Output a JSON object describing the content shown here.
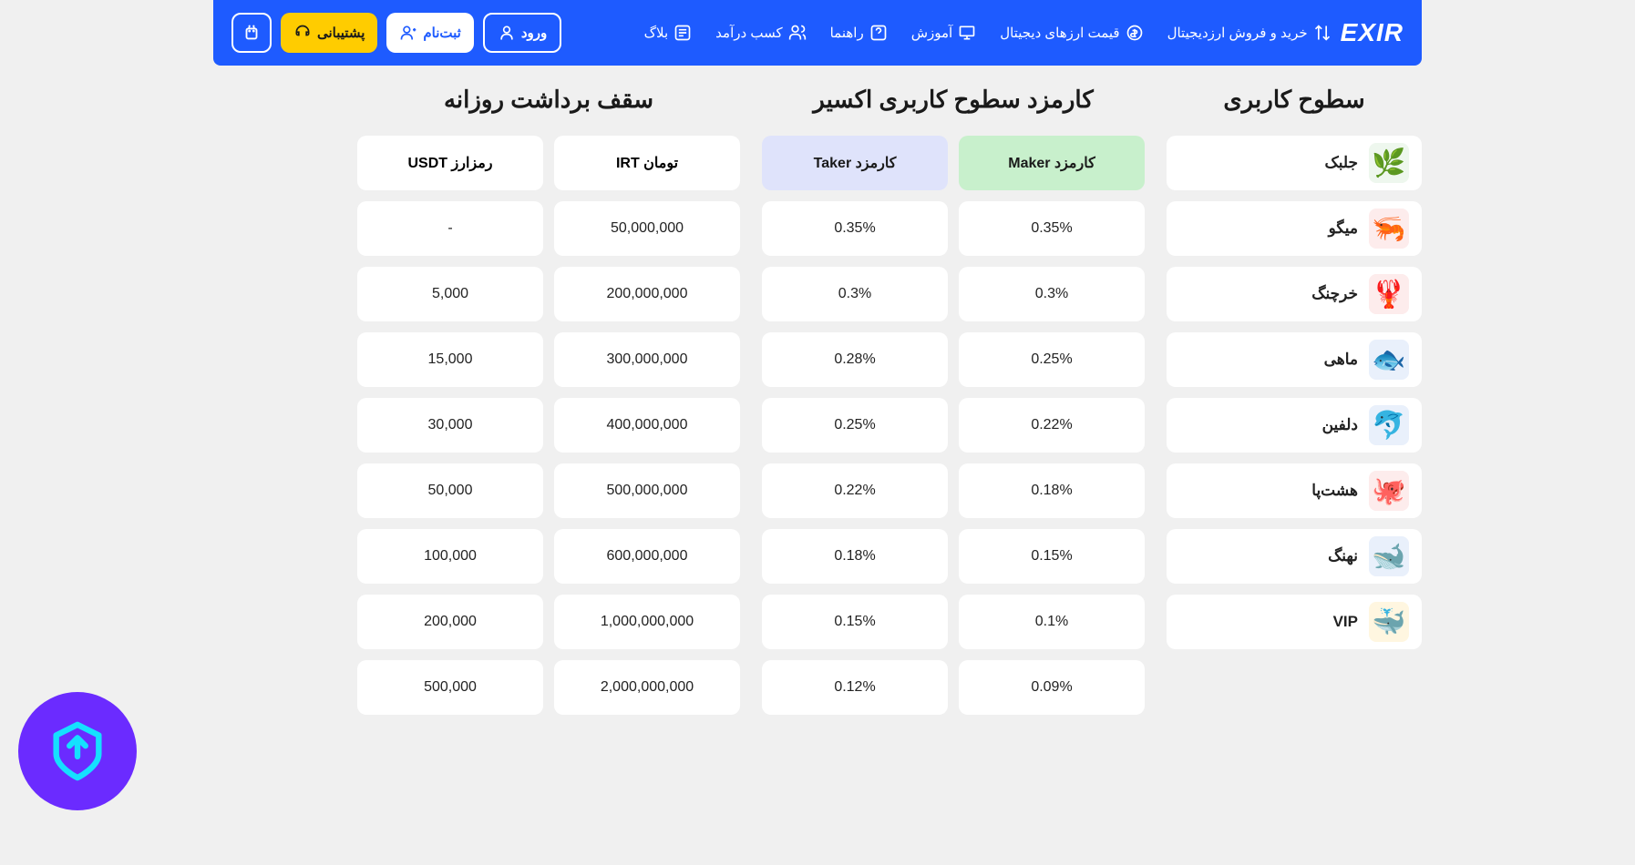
{
  "brand": "EXIR",
  "nav": {
    "items": [
      {
        "label": "خرید و فروش ارزدیجیتال"
      },
      {
        "label": "قیمت ارزهای دیجیتال"
      },
      {
        "label": "آموزش"
      },
      {
        "label": "راهنما"
      },
      {
        "label": "کسب درآمد"
      },
      {
        "label": "بلاگ"
      }
    ],
    "login": "ورود",
    "signup": "ثبت‌نام",
    "support": "پشتیبانی"
  },
  "panels": {
    "levels_title": "سطوح کاربری",
    "fees_title": "کارمزد سطوح کاربری اکسیر",
    "withdraw_title": "سقف برداشت روزانه",
    "maker_head": "کارمزد Maker",
    "taker_head": "کارمزد Taker",
    "irt_head": "تومان IRT",
    "usdt_head": "رمزارز USDT"
  },
  "levels": [
    {
      "label": "جلبک",
      "emoji": "🌿",
      "bg": "#eef7ee"
    },
    {
      "label": "میگو",
      "emoji": "🦐",
      "bg": "#fdecec"
    },
    {
      "label": "خرچنگ",
      "emoji": "🦞",
      "bg": "#fdecec"
    },
    {
      "label": "ماهی",
      "emoji": "🐟",
      "bg": "#e9f0fb"
    },
    {
      "label": "دلفین",
      "emoji": "🐬",
      "bg": "#e9f0fb"
    },
    {
      "label": "هشت‌پا",
      "emoji": "🐙",
      "bg": "#fdecec"
    },
    {
      "label": "نهنگ",
      "emoji": "🐋",
      "bg": "#e9f0fb"
    },
    {
      "label": "VIP",
      "emoji": "🐳",
      "bg": "#fff6e0"
    }
  ],
  "fees": {
    "maker": [
      "0.35%",
      "0.3%",
      "0.25%",
      "0.22%",
      "0.18%",
      "0.15%",
      "0.1%",
      "0.09%"
    ],
    "taker": [
      "0.35%",
      "0.3%",
      "0.28%",
      "0.25%",
      "0.22%",
      "0.18%",
      "0.15%",
      "0.12%"
    ]
  },
  "withdraw": {
    "irt": [
      "50,000,000",
      "200,000,000",
      "300,000,000",
      "400,000,000",
      "500,000,000",
      "600,000,000",
      "1,000,000,000",
      "2,000,000,000"
    ],
    "usdt": [
      "-",
      "5,000",
      "15,000",
      "30,000",
      "50,000",
      "100,000",
      "200,000",
      "500,000"
    ]
  },
  "colors": {
    "primary": "#1e5bff",
    "accent": "#ffcc00",
    "maker_bg": "#c8f0cc",
    "taker_bg": "#dfe3fb",
    "page_bg": "#f0f0f0",
    "card_bg": "#ffffff",
    "badge_bg": "#6b2bff",
    "badge_fg": "#15e0ff"
  }
}
